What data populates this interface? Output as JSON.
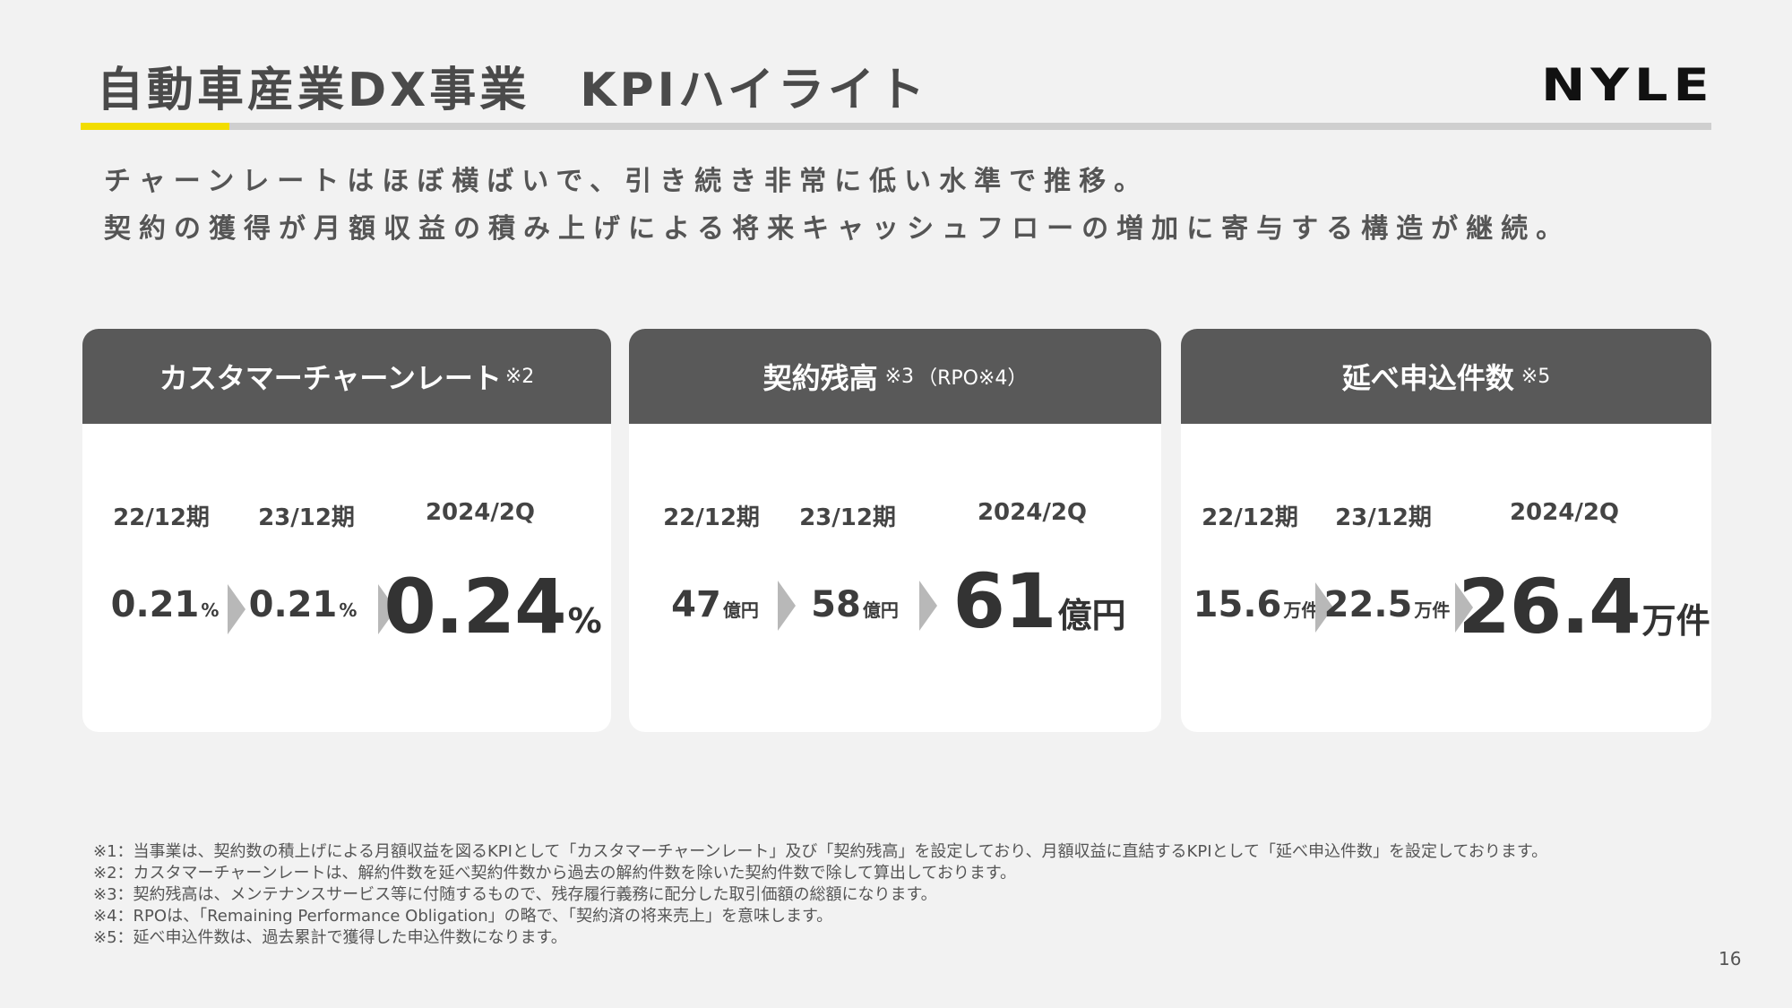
{
  "header": {
    "title": "自動車産業DX事業　KPIハイライト",
    "logo": "NYLE",
    "accent_color": "#f2dd00"
  },
  "lead": {
    "line1": "チャーンレートはほぼ横ばいで、引き続き非常に低い水準で推移。",
    "line2": "契約の獲得が月額収益の積み上げによる将来キャッシュフローの増加に寄与する構造が継続。"
  },
  "cards": [
    {
      "title": "カスタマーチャーンレート",
      "note": "※2",
      "periods": [
        "22/12期",
        "23/12期",
        "2024/2Q"
      ],
      "values": [
        "0.21",
        "0.21",
        "0.24"
      ],
      "unit": "%"
    },
    {
      "title": "契約残高",
      "note": "※3",
      "note2": "（RPO※4）",
      "periods": [
        "22/12期",
        "23/12期",
        "2024/2Q"
      ],
      "values": [
        "47",
        "58",
        "61"
      ],
      "unit": "億円"
    },
    {
      "title": "延べ申込件数",
      "note": "※5",
      "periods": [
        "22/12期",
        "23/12期",
        "2024/2Q"
      ],
      "values": [
        "15.6",
        "22.5",
        "26.4"
      ],
      "unit": "万件"
    }
  ],
  "footnotes": [
    "※1：当事業は、契約数の積上げによる月額収益を図るKPIとして「カスタマーチャーンレート」及び「契約残高」を設定しており、月額収益に直結するKPIとして「延べ申込件数」を設定しております。",
    "※2：カスタマーチャーンレートは、解約件数を延べ契約件数から過去の解約件数を除いた契約件数で除して算出しております。",
    "※3：契約残高は、メンテナンスサービス等に付随するもので、残存履行義務に配分した取引価額の総額になります。",
    "※4：RPOは、「Remaining Performance Obligation」の略で、「契約済の将来売上」を意味します。",
    "※5：延べ申込件数は、過去累計で獲得した申込件数になります。"
  ],
  "page_number": "16"
}
